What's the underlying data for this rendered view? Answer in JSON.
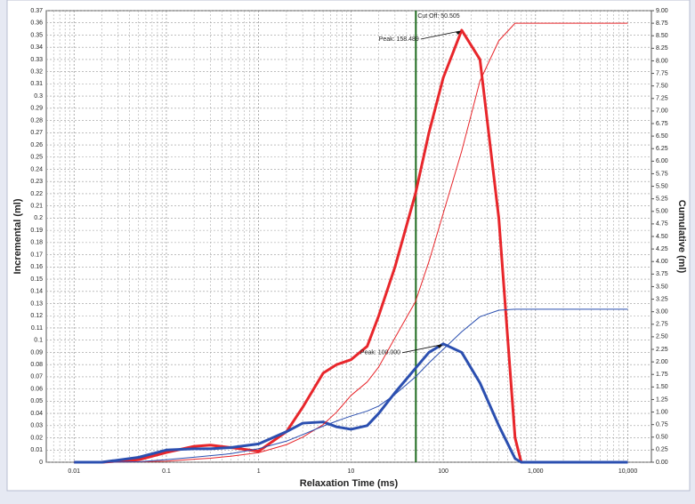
{
  "chart_data": {
    "type": "line",
    "xlabel": "Relaxation Time (ms)",
    "ylabel": "Incremental (ml)",
    "y2label": "Cumulative (ml)",
    "xscale": "log",
    "grid": true,
    "xlim": [
      0.005,
      18000
    ],
    "ylim": [
      0,
      0.37
    ],
    "y2lim": [
      0,
      9
    ],
    "xticks": [
      0.01,
      0.1,
      1,
      10,
      100,
      {
        "value": 1000,
        "label": "1,000"
      },
      {
        "value": 10000,
        "label": "10,000"
      }
    ],
    "yticks": [
      0,
      0.01,
      0.02,
      0.03,
      0.04,
      0.05,
      0.06,
      0.07,
      0.08,
      0.09,
      0.1,
      0.11,
      0.12,
      0.13,
      0.14,
      0.15,
      0.16,
      0.17,
      0.18,
      0.19,
      0.2,
      0.21,
      0.22,
      0.23,
      0.24,
      0.25,
      0.26,
      0.27,
      0.28,
      0.29,
      0.3,
      0.31,
      0.32,
      0.33,
      0.34,
      0.35,
      0.36,
      0.37
    ],
    "y2ticks": [
      {
        "value": 0,
        "label": "0.00"
      },
      {
        "value": 0.25,
        "label": "0.25"
      },
      {
        "value": 0.5,
        "label": "0.50"
      },
      {
        "value": 0.75,
        "label": "0.75"
      },
      {
        "value": 1,
        "label": "1.00"
      },
      {
        "value": 1.25,
        "label": "1.25"
      },
      {
        "value": 1.5,
        "label": "1.50"
      },
      {
        "value": 1.75,
        "label": "1.75"
      },
      {
        "value": 2,
        "label": "2.00"
      },
      {
        "value": 2.25,
        "label": "2.25"
      },
      {
        "value": 2.5,
        "label": "2.50"
      },
      {
        "value": 2.75,
        "label": "2.75"
      },
      {
        "value": 3,
        "label": "3.00"
      },
      {
        "value": 3.25,
        "label": "3.25"
      },
      {
        "value": 3.5,
        "label": "3.50"
      },
      {
        "value": 3.75,
        "label": "3.75"
      },
      {
        "value": 4,
        "label": "4.00"
      },
      {
        "value": 4.25,
        "label": "4.25"
      },
      {
        "value": 4.5,
        "label": "4.50"
      },
      {
        "value": 4.75,
        "label": "4.75"
      },
      {
        "value": 5,
        "label": "5.00"
      },
      {
        "value": 5.25,
        "label": "5.25"
      },
      {
        "value": 5.5,
        "label": "5.50"
      },
      {
        "value": 5.75,
        "label": "5.75"
      },
      {
        "value": 6,
        "label": "6.00"
      },
      {
        "value": 6.25,
        "label": "6.25"
      },
      {
        "value": 6.5,
        "label": "6.50"
      },
      {
        "value": 6.75,
        "label": "6.75"
      },
      {
        "value": 7,
        "label": "7.00"
      },
      {
        "value": 7.25,
        "label": "7.25"
      },
      {
        "value": 7.5,
        "label": "7.50"
      },
      {
        "value": 7.75,
        "label": "7.75"
      },
      {
        "value": 8,
        "label": "8.00"
      },
      {
        "value": 8.25,
        "label": "8.25"
      },
      {
        "value": 8.5,
        "label": "8.50"
      },
      {
        "value": 8.75,
        "label": "8.75"
      },
      {
        "value": 9,
        "label": "9.00"
      }
    ],
    "x": [
      0.01,
      0.02,
      0.05,
      0.1,
      0.2,
      0.3,
      0.5,
      1,
      2,
      3,
      5,
      7,
      10,
      15,
      20,
      30,
      50,
      70,
      100,
      158.489,
      250,
      400,
      600,
      700,
      1000,
      10000
    ],
    "series": [
      {
        "color": "#e8262b",
        "width": 3,
        "values": [
          0,
          0,
          0.002,
          0.008,
          0.013,
          0.014,
          0.012,
          0.009,
          0.025,
          0.045,
          0.073,
          0.08,
          0.084,
          0.095,
          0.12,
          0.16,
          0.22,
          0.27,
          0.315,
          0.354,
          0.33,
          0.2,
          0.02,
          0,
          0,
          0
        ]
      },
      {
        "color": "#2b4fb0",
        "width": 3,
        "values": [
          0,
          0,
          0.004,
          0.01,
          0.011,
          0.011,
          0.012,
          0.015,
          0.025,
          0.032,
          0.033,
          0.029,
          0.027,
          0.03,
          0.04,
          0.057,
          0.077,
          0.09,
          0.097,
          0.09,
          0.065,
          0.03,
          0.003,
          0,
          0,
          0
        ]
      },
      {
        "color": "#e8262b",
        "width": 1,
        "axis": "y2",
        "values": [
          0,
          0,
          0.01,
          0.02,
          0.06,
          0.08,
          0.12,
          0.19,
          0.35,
          0.5,
          0.75,
          1.0,
          1.33,
          1.6,
          1.9,
          2.48,
          3.2,
          4.0,
          4.96,
          6.2,
          7.6,
          8.4,
          8.75,
          8.75,
          8.75,
          8.75
        ]
      },
      {
        "color": "#2b4fb0",
        "width": 1,
        "axis": "y2",
        "values": [
          0,
          0,
          0.01,
          0.05,
          0.1,
          0.13,
          0.17,
          0.27,
          0.42,
          0.55,
          0.72,
          0.82,
          0.92,
          1.02,
          1.12,
          1.35,
          1.7,
          1.98,
          2.25,
          2.6,
          2.9,
          3.03,
          3.05,
          3.05,
          3.05,
          3.05
        ]
      }
    ],
    "cutoff": {
      "value": 50.505,
      "label": "Cut Off: 50.505",
      "color": "#1f6b1f"
    },
    "annotations": [
      "Peak: 158.489",
      "Peak: 100.000"
    ]
  }
}
